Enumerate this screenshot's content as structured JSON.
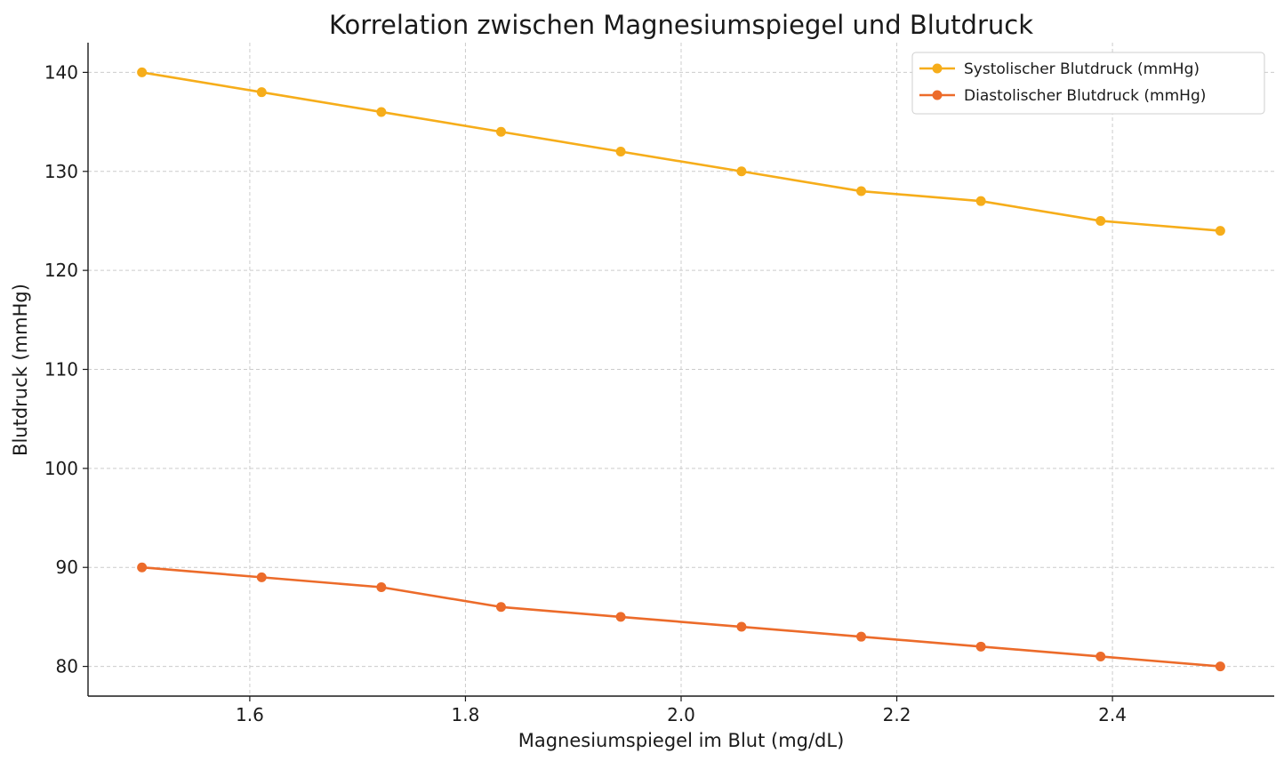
{
  "chart_data": {
    "type": "line",
    "title": "Korrelation zwischen Magnesiumspiegel und Blutdruck",
    "xlabel": "Magnesiumspiegel im Blut (mg/dL)",
    "ylabel": "Blutdruck (mmHg)",
    "x": [
      1.5,
      1.611,
      1.722,
      1.833,
      1.944,
      2.056,
      2.167,
      2.278,
      2.389,
      2.5
    ],
    "series": [
      {
        "name": "Systolischer Blutdruck (mmHg)",
        "color": "#f6ad1a",
        "values": [
          140,
          138,
          136,
          134,
          132,
          130,
          128,
          127,
          125,
          124
        ]
      },
      {
        "name": "Diastolischer Blutdruck (mmHg)",
        "color": "#ec6b2a",
        "values": [
          90,
          89,
          88,
          86,
          85,
          84,
          83,
          82,
          81,
          80
        ]
      }
    ],
    "xlim": [
      1.45,
      2.55
    ],
    "ylim": [
      77,
      143
    ],
    "xticks": [
      1.6,
      1.8,
      2.0,
      2.2,
      2.4
    ],
    "xtick_labels": [
      "1.6",
      "1.8",
      "2.0",
      "2.2",
      "2.4"
    ],
    "yticks": [
      80,
      90,
      100,
      110,
      120,
      130,
      140
    ],
    "ytick_labels": [
      "80",
      "90",
      "100",
      "110",
      "120",
      "130",
      "140"
    ],
    "grid": true,
    "legend_position": "top-right"
  }
}
